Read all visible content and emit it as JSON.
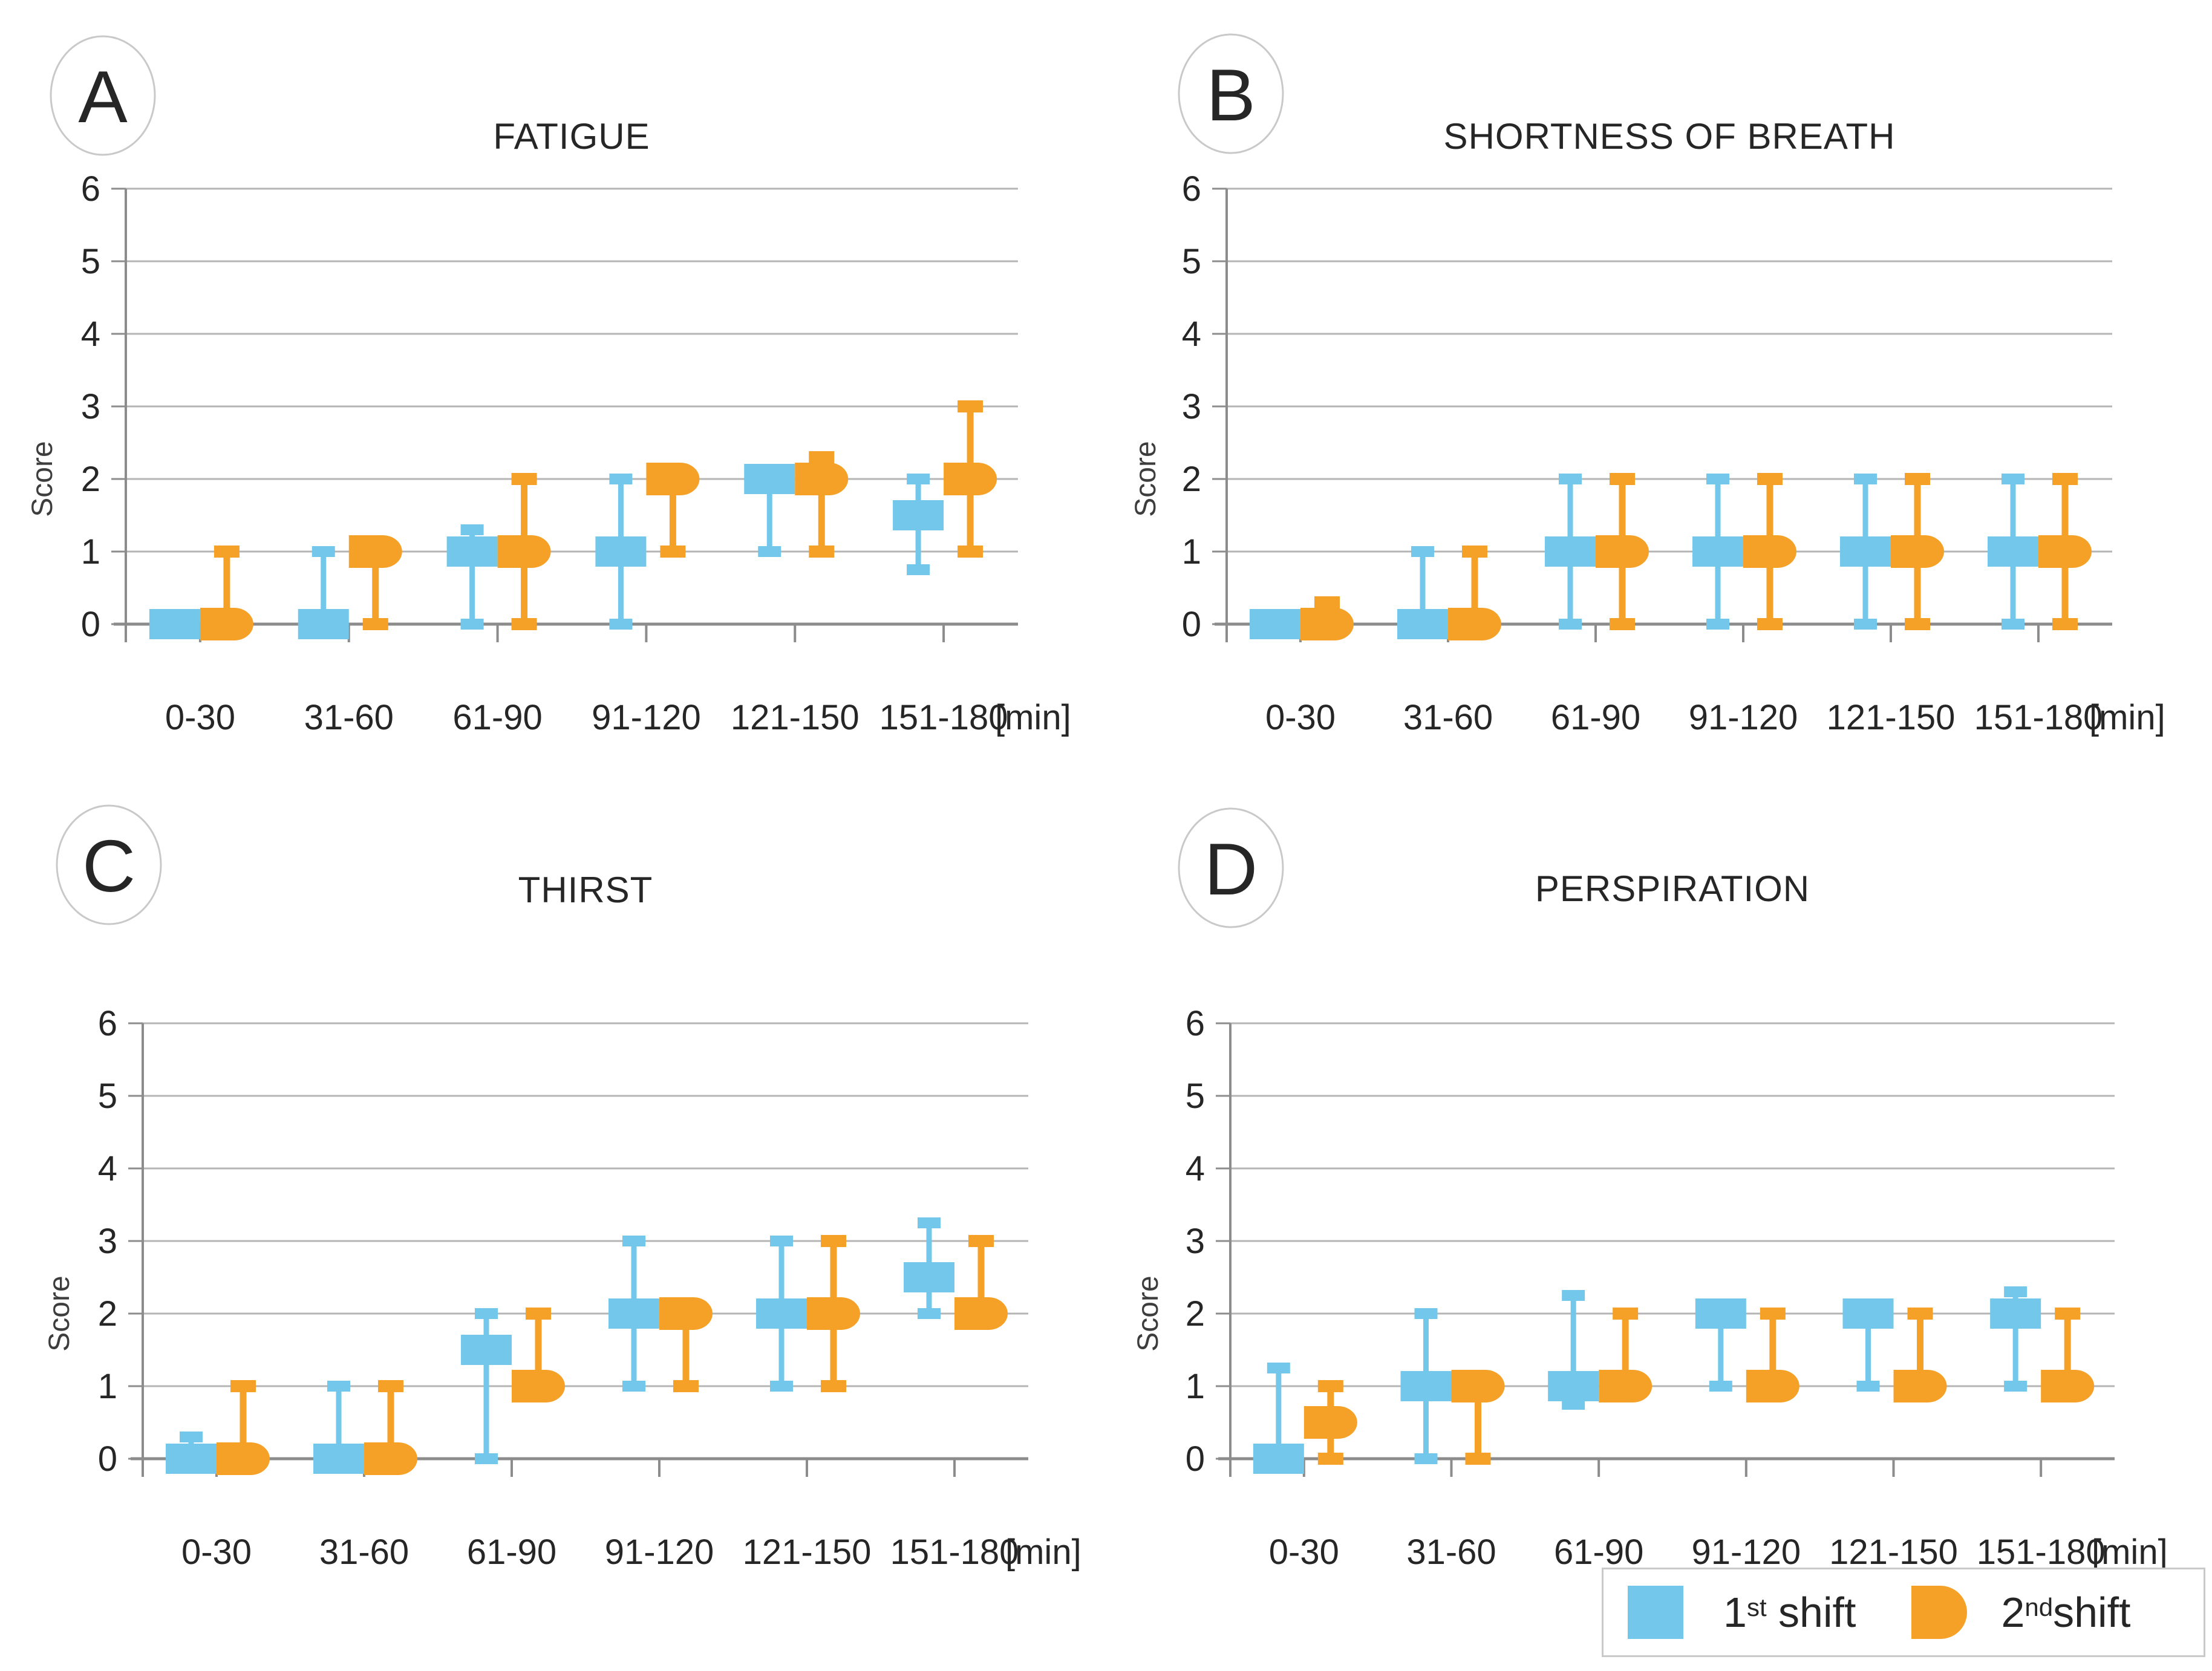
{
  "page": {
    "background": "#ffffff"
  },
  "colors": {
    "shift1": "#72C7EA",
    "shift2": "#F5A128",
    "grid": "#B5B5B5",
    "axis": "#8C8C8C",
    "text": "#262626",
    "score_text": "#3D3D3D",
    "circle_border": "#C9C9C9",
    "circle_fill": "#FFFFFF",
    "legend_border": "#C9C9C9"
  },
  "legend": {
    "items": [
      {
        "base": "1",
        "sup": "st",
        "rest": " shift",
        "color_key": "shift1",
        "shape": "square"
      },
      {
        "base": "2",
        "sup": "nd",
        "rest": "shift",
        "color_key": "shift2",
        "shape": "pill"
      }
    ]
  },
  "chart_data": [
    {
      "type": "box-whisker",
      "panel_letter": "A",
      "title": "FATIGUE",
      "ylabel": "Score",
      "xlabel_suffix": "[min]",
      "ylim": [
        0,
        6
      ],
      "yticks": [
        0,
        1,
        2,
        3,
        4,
        5,
        6
      ],
      "grid": true,
      "legend_position": "bottom-right-of-figure",
      "categories": [
        "0-30",
        "31-60",
        "61-90",
        "91-120",
        "121-150",
        "151-180"
      ],
      "series": [
        {
          "name": "1st shift",
          "color_key": "shift1",
          "points": [
            {
              "box": 0
            },
            {
              "box": 0,
              "hi": 1
            },
            {
              "box": 1,
              "lo": 0,
              "hi": 1.3
            },
            {
              "box": 1,
              "lo": 0,
              "hi": 2
            },
            {
              "box": 2,
              "lo": 1
            },
            {
              "box": 1.5,
              "lo": 0.75,
              "hi": 2
            }
          ]
        },
        {
          "name": "2nd shift",
          "color_key": "shift2",
          "points": [
            {
              "box": 0,
              "hi": 1
            },
            {
              "box": 1,
              "lo": 0
            },
            {
              "box": 1,
              "lo": 0,
              "hi": 2
            },
            {
              "box": 2,
              "lo": 1
            },
            {
              "box": 2,
              "lo": 1,
              "hi": 2.3
            },
            {
              "box": 2,
              "lo": 1,
              "hi": 3
            }
          ]
        }
      ]
    },
    {
      "type": "box-whisker",
      "panel_letter": "B",
      "title": "SHORTNESS OF BREATH",
      "ylabel": "Score",
      "xlabel_suffix": "[min]",
      "ylim": [
        0,
        6
      ],
      "yticks": [
        0,
        1,
        2,
        3,
        4,
        5,
        6
      ],
      "grid": true,
      "categories": [
        "0-30",
        "31-60",
        "61-90",
        "91-120",
        "121-150",
        "151-180"
      ],
      "series": [
        {
          "name": "1st shift",
          "color_key": "shift1",
          "points": [
            {
              "box": 0
            },
            {
              "box": 0,
              "hi": 1
            },
            {
              "box": 1,
              "lo": 0,
              "hi": 2
            },
            {
              "box": 1,
              "lo": 0,
              "hi": 2
            },
            {
              "box": 1,
              "lo": 0,
              "hi": 2
            },
            {
              "box": 1,
              "lo": 0,
              "hi": 2
            }
          ]
        },
        {
          "name": "2nd shift",
          "color_key": "shift2",
          "points": [
            {
              "box": 0,
              "hi": 0.3
            },
            {
              "box": 0,
              "hi": 1
            },
            {
              "box": 1,
              "lo": 0,
              "hi": 2
            },
            {
              "box": 1,
              "lo": 0,
              "hi": 2
            },
            {
              "box": 1,
              "lo": 0,
              "hi": 2
            },
            {
              "box": 1,
              "lo": 0,
              "hi": 2
            }
          ]
        }
      ]
    },
    {
      "type": "box-whisker",
      "panel_letter": "C",
      "title": "THIRST",
      "ylabel": "Score",
      "xlabel_suffix": "[min]",
      "ylim": [
        0,
        6
      ],
      "yticks": [
        0,
        1,
        2,
        3,
        4,
        5,
        6
      ],
      "grid": true,
      "categories": [
        "0-30",
        "31-60",
        "61-90",
        "91-120",
        "121-150",
        "151-180"
      ],
      "series": [
        {
          "name": "1st shift",
          "color_key": "shift1",
          "points": [
            {
              "box": 0,
              "hi": 0.3
            },
            {
              "box": 0,
              "hi": 1
            },
            {
              "box": 1.5,
              "lo": 0,
              "hi": 2
            },
            {
              "box": 2,
              "lo": 1,
              "hi": 3
            },
            {
              "box": 2,
              "lo": 1,
              "hi": 3
            },
            {
              "box": 2.5,
              "lo": 2,
              "hi": 3.25
            }
          ]
        },
        {
          "name": "2nd shift",
          "color_key": "shift2",
          "points": [
            {
              "box": 0,
              "hi": 1
            },
            {
              "box": 0,
              "hi": 1
            },
            {
              "box": 1,
              "hi": 2
            },
            {
              "box": 2,
              "lo": 1
            },
            {
              "box": 2,
              "lo": 1,
              "hi": 3
            },
            {
              "box": 2,
              "hi": 3
            }
          ]
        }
      ]
    },
    {
      "type": "box-whisker",
      "panel_letter": "D",
      "title": "PERSPIRATION",
      "ylabel": "Score",
      "xlabel_suffix": "[min]",
      "ylim": [
        0,
        6
      ],
      "yticks": [
        0,
        1,
        2,
        3,
        4,
        5,
        6
      ],
      "grid": true,
      "categories": [
        "0-30",
        "31-60",
        "61-90",
        "91-120",
        "121-150",
        "151-180"
      ],
      "series": [
        {
          "name": "1st shift",
          "color_key": "shift1",
          "points": [
            {
              "box": 0,
              "hi": 1.25
            },
            {
              "box": 1,
              "lo": 0,
              "hi": 2
            },
            {
              "box": 1,
              "lo": 0.75,
              "hi": 2.25
            },
            {
              "box": 2,
              "lo": 1
            },
            {
              "box": 2,
              "lo": 1
            },
            {
              "box": 2,
              "lo": 1,
              "hi": 2.3
            }
          ]
        },
        {
          "name": "2nd shift",
          "color_key": "shift2",
          "points": [
            {
              "box": 0.5,
              "lo": 0,
              "hi": 1
            },
            {
              "box": 1,
              "lo": 0
            },
            {
              "box": 1,
              "hi": 2
            },
            {
              "box": 1,
              "hi": 2
            },
            {
              "box": 1,
              "hi": 2
            },
            {
              "box": 1,
              "hi": 2
            }
          ]
        }
      ]
    }
  ]
}
